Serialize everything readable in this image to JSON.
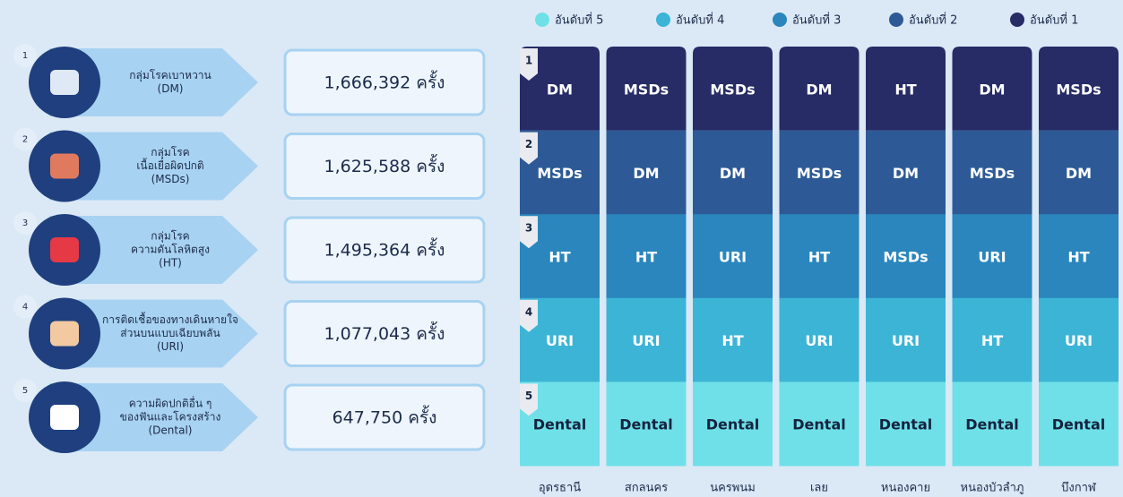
{
  "legend": [
    {
      "label": "อันดับที่ 5",
      "color": "#6fe0e8"
    },
    {
      "label": "อันดับที่ 4",
      "color": "#3cb4d6"
    },
    {
      "label": "อันดับที่ 3",
      "color": "#2a86bd"
    },
    {
      "label": "อันดับที่ 2",
      "color": "#2d5a96"
    },
    {
      "label": "อันดับที่ 1",
      "color": "#272b66"
    }
  ],
  "diseases": [
    {
      "number": "1",
      "label": [
        "กลุ่มโรคเบาหวาน",
        "(DM)"
      ],
      "count": "1,666,392 ครั้ง"
    },
    {
      "number": "2",
      "label": [
        "กลุ่มโรค",
        "เนื้อเยื่อผิดปกติ",
        "(MSDs)"
      ],
      "count": "1,625,588 ครั้ง"
    },
    {
      "number": "3",
      "label": [
        "กลุ่มโรค",
        "ความดันโลหิตสูง",
        "(HT)"
      ],
      "count": "1,495,364 ครั้ง"
    },
    {
      "number": "4",
      "label": [
        "การติดเชื้อของทางเดินหายใจ",
        "ส่วนบนแบบเฉียบพลัน",
        "(URI)"
      ],
      "count": "1,077,043 ครั้ง"
    },
    {
      "number": "5",
      "label": [
        "ความผิดปกติอื่น ๆ",
        "ของฟันและโครงสร้าง",
        "(Dental)"
      ],
      "count": "647,750 ครั้ง"
    }
  ],
  "grid": {
    "rank_labels": [
      "1",
      "2",
      "3",
      "4",
      "5"
    ],
    "columns": [
      {
        "name": "อุดรธานี",
        "ranks": [
          "DM",
          "MSDs",
          "HT",
          "URI",
          "Dental"
        ]
      },
      {
        "name": "สกลนคร",
        "ranks": [
          "MSDs",
          "DM",
          "HT",
          "URI",
          "Dental"
        ]
      },
      {
        "name": "นครพนม",
        "ranks": [
          "MSDs",
          "DM",
          "URI",
          "HT",
          "Dental"
        ]
      },
      {
        "name": "เลย",
        "ranks": [
          "DM",
          "MSDs",
          "HT",
          "URI",
          "Dental"
        ]
      },
      {
        "name": "หนองคาย",
        "ranks": [
          "HT",
          "DM",
          "MSDs",
          "URI",
          "Dental"
        ]
      },
      {
        "name": "หนองบัวลำภู",
        "ranks": [
          "DM",
          "MSDs",
          "URI",
          "HT",
          "Dental"
        ]
      },
      {
        "name": "บึงกาฬ",
        "ranks": [
          "MSDs",
          "DM",
          "HT",
          "URI",
          "Dental"
        ]
      }
    ]
  }
}
